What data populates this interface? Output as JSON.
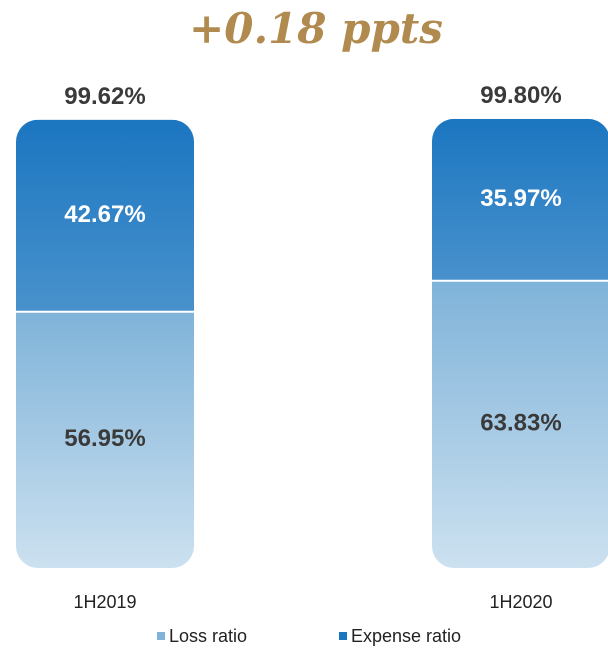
{
  "chart_data": {
    "type": "stacked-bar",
    "title": "+0.18 ppts",
    "categories": [
      "1H2019",
      "1H2020"
    ],
    "series": [
      {
        "name": "Loss ratio",
        "color": "#7fb3d9",
        "values": [
          56.95,
          63.83
        ],
        "value_labels": [
          "56.95%",
          "63.83%"
        ]
      },
      {
        "name": "Expense ratio",
        "color": "#1b76c0",
        "values": [
          42.67,
          35.97
        ],
        "value_labels": [
          "42.67%",
          "35.97%"
        ]
      }
    ],
    "totals": {
      "values": [
        99.62,
        99.8
      ],
      "value_labels": [
        "99.62%",
        "99.80%"
      ]
    }
  }
}
